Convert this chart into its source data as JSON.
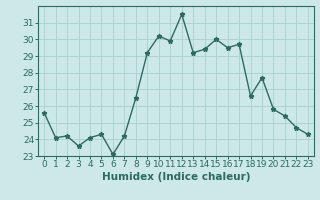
{
  "x": [
    0,
    1,
    2,
    3,
    4,
    5,
    6,
    7,
    8,
    9,
    10,
    11,
    12,
    13,
    14,
    15,
    16,
    17,
    18,
    19,
    20,
    21,
    22,
    23
  ],
  "y": [
    25.6,
    24.1,
    24.2,
    23.6,
    24.1,
    24.3,
    23.1,
    24.2,
    26.5,
    29.2,
    30.2,
    29.9,
    31.5,
    29.2,
    29.4,
    30.0,
    29.5,
    29.7,
    26.6,
    27.7,
    25.8,
    25.4,
    24.7,
    24.3
  ],
  "line_color": "#2e6b5e",
  "marker": "*",
  "marker_size": 3.5,
  "bg_color": "#cce8e8",
  "grid_color": "#aacfcf",
  "xlabel": "Humidex (Indice chaleur)",
  "xlabel_fontsize": 7.5,
  "tick_fontsize": 6.5,
  "ylim": [
    23,
    32
  ],
  "yticks": [
    23,
    24,
    25,
    26,
    27,
    28,
    29,
    30,
    31
  ],
  "xlim": [
    -0.5,
    23.5
  ],
  "line_width": 1.0
}
